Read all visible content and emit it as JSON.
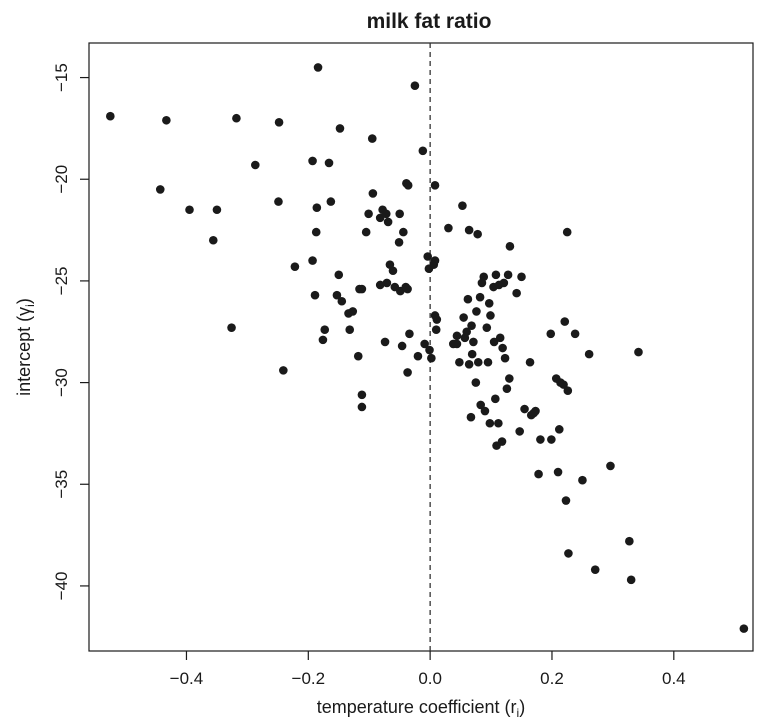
{
  "chart_data": {
    "type": "scatter",
    "title": "milk fat ratio",
    "xlabel": "temperature coefficient (r",
    "xlabel_sub": "i",
    "xlabel_suffix": ")",
    "ylabel": "intercept (γ",
    "ylabel_sub": "i",
    "ylabel_suffix": ")",
    "xlim": [
      -0.56,
      0.53
    ],
    "ylim": [
      -43.2,
      -13.3
    ],
    "xticks": [
      -0.4,
      -0.2,
      0.0,
      0.2,
      0.4
    ],
    "xtick_labels": [
      "−0.4",
      "−0.2",
      "0.0",
      "0.2",
      "0.4"
    ],
    "yticks": [
      -40,
      -35,
      -30,
      -25,
      -20,
      -15
    ],
    "ytick_labels": [
      "−40",
      "−35",
      "−30",
      "−25",
      "−20",
      "−15"
    ],
    "reference_line": {
      "x": 0.0,
      "style": "dashed"
    },
    "grid": false,
    "point_color": "#1a1a1a",
    "points": [
      [
        -0.525,
        -16.9
      ],
      [
        -0.433,
        -17.1
      ],
      [
        -0.318,
        -17.0
      ],
      [
        -0.184,
        -14.5
      ],
      [
        -0.248,
        -17.2
      ],
      [
        -0.148,
        -17.5
      ],
      [
        -0.025,
        -15.4
      ],
      [
        -0.095,
        -18.0
      ],
      [
        -0.012,
        -18.6
      ],
      [
        -0.443,
        -20.5
      ],
      [
        -0.395,
        -21.5
      ],
      [
        -0.35,
        -21.5
      ],
      [
        -0.356,
        -23.0
      ],
      [
        -0.326,
        -27.3
      ],
      [
        -0.287,
        -19.3
      ],
      [
        -0.249,
        -21.1
      ],
      [
        -0.241,
        -29.4
      ],
      [
        -0.222,
        -24.3
      ],
      [
        -0.193,
        -24.0
      ],
      [
        -0.193,
        -19.1
      ],
      [
        -0.186,
        -21.4
      ],
      [
        -0.187,
        -22.6
      ],
      [
        -0.166,
        -19.2
      ],
      [
        -0.163,
        -21.1
      ],
      [
        -0.15,
        -24.7
      ],
      [
        -0.145,
        -26.0
      ],
      [
        -0.153,
        -25.7
      ],
      [
        -0.132,
        -27.4
      ],
      [
        -0.134,
        -26.6
      ],
      [
        -0.127,
        -26.5
      ],
      [
        -0.116,
        -25.4
      ],
      [
        -0.112,
        -25.4
      ],
      [
        -0.118,
        -28.7
      ],
      [
        -0.112,
        -30.6
      ],
      [
        -0.112,
        -31.2
      ],
      [
        -0.101,
        -21.7
      ],
      [
        -0.105,
        -22.6
      ],
      [
        -0.094,
        -20.7
      ],
      [
        -0.082,
        -21.9
      ],
      [
        -0.078,
        -21.5
      ],
      [
        -0.072,
        -21.7
      ],
      [
        -0.069,
        -22.1
      ],
      [
        -0.071,
        -25.1
      ],
      [
        -0.074,
        -28.0
      ],
      [
        -0.066,
        -24.2
      ],
      [
        -0.061,
        -24.5
      ],
      [
        -0.058,
        -25.3
      ],
      [
        -0.051,
        -23.1
      ],
      [
        -0.05,
        -21.7
      ],
      [
        -0.049,
        -25.5
      ],
      [
        -0.044,
        -22.6
      ],
      [
        -0.04,
        -25.3
      ],
      [
        -0.037,
        -25.4
      ],
      [
        -0.039,
        -20.2
      ],
      [
        -0.036,
        -20.3
      ],
      [
        -0.034,
        -27.6
      ],
      [
        -0.037,
        -29.5
      ],
      [
        -0.046,
        -28.2
      ],
      [
        -0.02,
        -28.7
      ],
      [
        -0.009,
        -28.1
      ],
      [
        -0.004,
        -23.8
      ],
      [
        -0.002,
        -24.4
      ],
      [
        -0.001,
        -28.4
      ],
      [
        0.002,
        -28.8
      ],
      [
        0.006,
        -24.2
      ],
      [
        0.008,
        -20.3
      ],
      [
        0.008,
        -24.0
      ],
      [
        0.008,
        -26.7
      ],
      [
        0.011,
        -26.9
      ],
      [
        0.01,
        -27.4
      ],
      [
        -0.176,
        -27.9
      ],
      [
        -0.173,
        -27.4
      ],
      [
        -0.189,
        -25.7
      ],
      [
        -0.082,
        -25.2
      ],
      [
        0.03,
        -22.4
      ],
      [
        0.044,
        -27.7
      ],
      [
        0.038,
        -28.1
      ],
      [
        0.044,
        -28.1
      ],
      [
        0.048,
        -29.0
      ],
      [
        0.053,
        -21.3
      ],
      [
        0.055,
        -26.8
      ],
      [
        0.057,
        -27.8
      ],
      [
        0.06,
        -27.5
      ],
      [
        0.062,
        -25.9
      ],
      [
        0.064,
        -22.5
      ],
      [
        0.064,
        -29.1
      ],
      [
        0.067,
        -31.7
      ],
      [
        0.068,
        -27.2
      ],
      [
        0.069,
        -28.6
      ],
      [
        0.071,
        -28.0
      ],
      [
        0.075,
        -30.0
      ],
      [
        0.078,
        -22.7
      ],
      [
        0.076,
        -26.5
      ],
      [
        0.079,
        -29.0
      ],
      [
        0.082,
        -25.8
      ],
      [
        0.083,
        -31.1
      ],
      [
        0.085,
        -25.1
      ],
      [
        0.088,
        -24.8
      ],
      [
        0.09,
        -31.4
      ],
      [
        0.093,
        -27.3
      ],
      [
        0.095,
        -29.0
      ],
      [
        0.097,
        -26.1
      ],
      [
        0.098,
        -32.0
      ],
      [
        0.099,
        -26.7
      ],
      [
        0.104,
        -25.3
      ],
      [
        0.105,
        -28.0
      ],
      [
        0.107,
        -30.8
      ],
      [
        0.108,
        -24.7
      ],
      [
        0.109,
        -33.1
      ],
      [
        0.112,
        -32.0
      ],
      [
        0.113,
        -25.2
      ],
      [
        0.115,
        -27.8
      ],
      [
        0.118,
        -32.9
      ],
      [
        0.119,
        -28.3
      ],
      [
        0.121,
        -25.1
      ],
      [
        0.123,
        -28.8
      ],
      [
        0.126,
        -30.3
      ],
      [
        0.128,
        -24.7
      ],
      [
        0.13,
        -29.8
      ],
      [
        0.131,
        -23.3
      ],
      [
        0.142,
        -25.6
      ],
      [
        0.147,
        -32.4
      ],
      [
        0.15,
        -24.8
      ],
      [
        0.155,
        -31.3
      ],
      [
        0.164,
        -29.0
      ],
      [
        0.166,
        -31.6
      ],
      [
        0.17,
        -31.5
      ],
      [
        0.173,
        -31.4
      ],
      [
        0.178,
        -34.5
      ],
      [
        0.181,
        -32.8
      ],
      [
        0.198,
        -27.6
      ],
      [
        0.199,
        -32.8
      ],
      [
        0.207,
        -29.8
      ],
      [
        0.21,
        -34.4
      ],
      [
        0.212,
        -32.3
      ],
      [
        0.214,
        -30.0
      ],
      [
        0.219,
        -30.1
      ],
      [
        0.221,
        -27.0
      ],
      [
        0.223,
        -35.8
      ],
      [
        0.225,
        -22.6
      ],
      [
        0.226,
        -30.4
      ],
      [
        0.227,
        -38.4
      ],
      [
        0.238,
        -27.6
      ],
      [
        0.25,
        -34.8
      ],
      [
        0.261,
        -28.6
      ],
      [
        0.271,
        -39.2
      ],
      [
        0.296,
        -34.1
      ],
      [
        0.327,
        -37.8
      ],
      [
        0.33,
        -39.7
      ],
      [
        0.342,
        -28.5
      ],
      [
        0.515,
        -42.1
      ]
    ]
  }
}
